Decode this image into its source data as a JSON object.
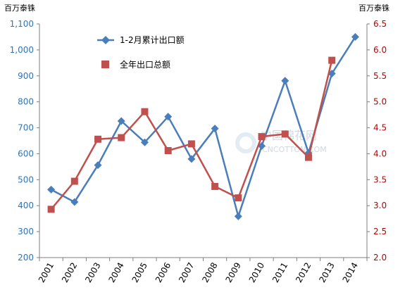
{
  "chart_data": {
    "type": "line",
    "left_unit": "百万泰铢",
    "right_unit": "百万泰铢",
    "categories": [
      "2001",
      "2002",
      "2003",
      "2004",
      "2005",
      "2006",
      "2007",
      "2008",
      "2009",
      "2010",
      "2011",
      "2012",
      "2013",
      "2014"
    ],
    "series": [
      {
        "name": "1-2月累计出口额",
        "axis": "left",
        "color": "#4a7ebb",
        "marker": "diamond",
        "values": [
          462,
          414,
          556,
          726,
          644,
          743,
          580,
          697,
          359,
          630,
          881,
          603,
          909,
          1050
        ]
      },
      {
        "name": "全年出口总额",
        "axis": "right",
        "color": "#c0504d",
        "marker": "square",
        "values": [
          2.93,
          3.47,
          4.28,
          4.31,
          4.81,
          4.06,
          4.19,
          3.37,
          3.15,
          4.33,
          4.38,
          3.93,
          5.8,
          null
        ]
      }
    ],
    "left_axis": {
      "min": 200,
      "max": 1100,
      "step": 100,
      "ticks": [
        "200",
        "300",
        "400",
        "500",
        "600",
        "700",
        "800",
        "900",
        "1,000",
        "1,100"
      ]
    },
    "right_axis": {
      "min": 2.0,
      "max": 6.5,
      "step": 0.5,
      "ticks": [
        "2.0",
        "2.5",
        "3.0",
        "3.5",
        "4.0",
        "4.5",
        "5.0",
        "5.5",
        "6.0",
        "6.5"
      ]
    },
    "grid": false,
    "legend_position": "top-center"
  },
  "watermark": {
    "text_cn": "中国棉花网",
    "text_en": "CNCOTTON.COM"
  }
}
